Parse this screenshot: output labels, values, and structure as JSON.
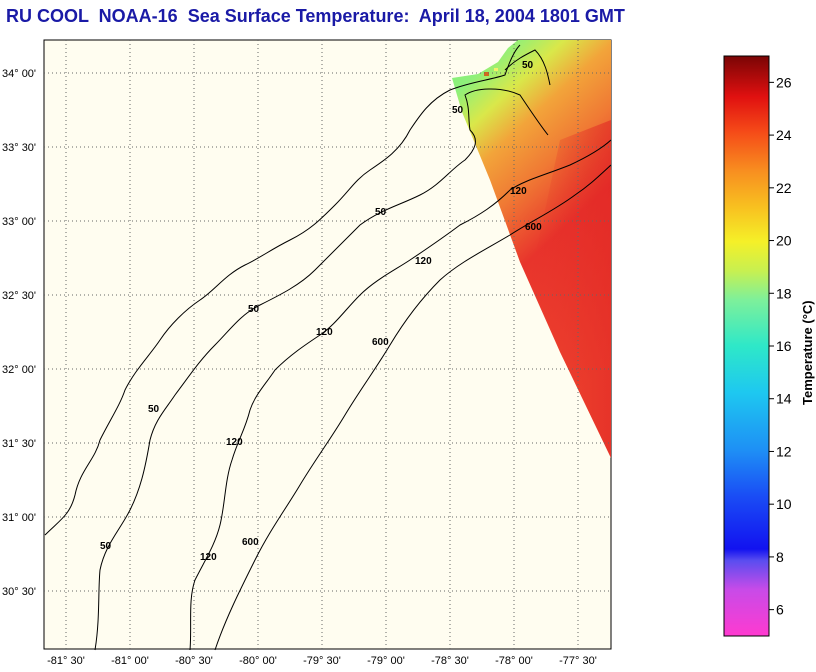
{
  "title": "RU COOL  NOAA-16  Sea Surface Temperature:  April 18, 2004 1801 GMT",
  "map": {
    "lat_ticks": [
      "34° 00'",
      "33° 30'",
      "33° 00'",
      "32° 30'",
      "32° 00'",
      "31° 30'",
      "31° 00'",
      "30° 30'"
    ],
    "lon_ticks": [
      "-81° 30'",
      "-81° 00'",
      "-80° 30'",
      "-80° 00'",
      "-79° 30'",
      "-79° 00'",
      "-78° 30'",
      "-78° 00'",
      "-77° 30'"
    ],
    "contour_labels": [
      "50",
      "50",
      "50",
      "50",
      "50",
      "50",
      "120",
      "120",
      "120",
      "120",
      "120",
      "600",
      "600",
      "600"
    ],
    "colors": {
      "land_bg": "#fffdf0",
      "coast": "#000000",
      "grid": "#555555"
    }
  },
  "colorbar": {
    "label": "Temperature (°C)",
    "ticks": [
      "26",
      "24",
      "22",
      "20",
      "18",
      "16",
      "14",
      "12",
      "10",
      "8",
      "6"
    ],
    "range": [
      5,
      27
    ]
  }
}
